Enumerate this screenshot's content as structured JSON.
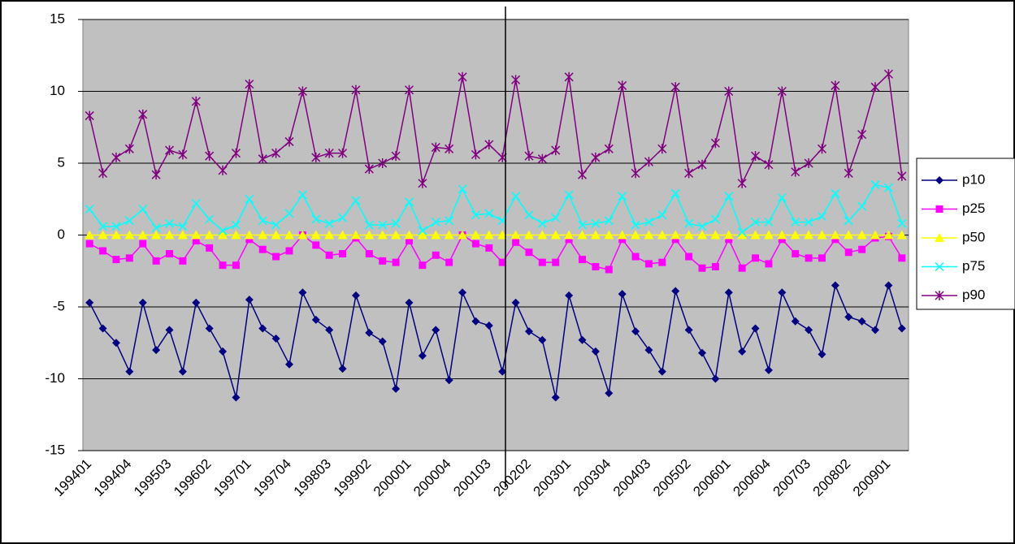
{
  "chart_data": {
    "type": "line",
    "categories": [
      "199401",
      null,
      null,
      "199404",
      null,
      null,
      "199503",
      null,
      null,
      "199602",
      null,
      null,
      "199701",
      null,
      null,
      "199704",
      null,
      null,
      "199803",
      null,
      null,
      "199902",
      null,
      null,
      "200001",
      null,
      null,
      "200004",
      null,
      null,
      "200103",
      null,
      null,
      "200202",
      null,
      null,
      "200301",
      null,
      null,
      "200304",
      null,
      null,
      "200403",
      null,
      null,
      "200502",
      null,
      null,
      "200601",
      null,
      null,
      "200604",
      null,
      null,
      "200703",
      null,
      null,
      "200802",
      null,
      null,
      "200901",
      null
    ],
    "ylim": [
      -15,
      15
    ],
    "yticks": [
      -15,
      -10,
      -5,
      0,
      5,
      10,
      15
    ],
    "grid": true,
    "legend": "right",
    "series": [
      {
        "name": "p10",
        "color": "#000080",
        "marker": "diamond",
        "values": [
          -4.7,
          -6.5,
          -7.5,
          -9.5,
          -4.7,
          -8.0,
          -6.6,
          -9.5,
          -4.7,
          -6.5,
          -8.1,
          -11.3,
          -4.5,
          -6.5,
          -7.2,
          -9.0,
          -4.0,
          -5.9,
          -6.6,
          -9.3,
          -4.2,
          -6.8,
          -7.4,
          -10.7,
          -4.7,
          -8.4,
          -6.6,
          -10.1,
          -4.0,
          -6.0,
          -6.3,
          -9.5,
          -4.7,
          -6.7,
          -7.3,
          -11.3,
          -4.2,
          -7.3,
          -8.1,
          -11.0,
          -4.1,
          -6.7,
          -8.0,
          -9.5,
          -3.9,
          -6.6,
          -8.2,
          -10.0,
          -4.0,
          -8.1,
          -6.5,
          -9.4,
          -4.0,
          -6.0,
          -6.6,
          -8.3,
          -3.5,
          -5.7,
          -6.0,
          -6.6,
          -3.5,
          -6.5
        ]
      },
      {
        "name": "p25",
        "color": "#ff00ff",
        "marker": "square",
        "values": [
          -0.6,
          -1.1,
          -1.7,
          -1.6,
          -0.6,
          -1.8,
          -1.3,
          -1.8,
          -0.4,
          -0.9,
          -2.1,
          -2.1,
          -0.3,
          -1.0,
          -1.5,
          -1.1,
          0.0,
          -0.7,
          -1.4,
          -1.3,
          -0.2,
          -1.3,
          -1.8,
          -1.9,
          -0.4,
          -2.1,
          -1.4,
          -1.9,
          0.0,
          -0.6,
          -0.9,
          -1.9,
          -0.5,
          -1.2,
          -1.9,
          -1.9,
          -0.3,
          -1.7,
          -2.2,
          -2.4,
          -0.3,
          -1.5,
          -2.0,
          -1.9,
          -0.3,
          -1.5,
          -2.3,
          -2.2,
          -0.3,
          -2.3,
          -1.6,
          -2.0,
          -0.3,
          -1.3,
          -1.6,
          -1.6,
          -0.3,
          -1.2,
          -1.0,
          -0.2,
          -0.1,
          -1.6
        ]
      },
      {
        "name": "p50",
        "color": "#ffff00",
        "marker": "triangle",
        "values": [
          0,
          0,
          0,
          0,
          0,
          0,
          0,
          0,
          0,
          0,
          0,
          0,
          0,
          0,
          0,
          0,
          0,
          0,
          0,
          0,
          0,
          0,
          0,
          0,
          0,
          0,
          0,
          0,
          0,
          0,
          0,
          0,
          0,
          0,
          0,
          0,
          0,
          0,
          0,
          0,
          0,
          0,
          0,
          0,
          0,
          0,
          0,
          0,
          0,
          0,
          0,
          0,
          0,
          0,
          0,
          0,
          0,
          0,
          0,
          0,
          0,
          0
        ]
      },
      {
        "name": "p75",
        "color": "#00ffff",
        "marker": "x",
        "values": [
          1.8,
          0.6,
          0.6,
          1.0,
          1.8,
          0.5,
          0.8,
          0.6,
          2.2,
          1.1,
          0.3,
          0.7,
          2.5,
          1.0,
          0.7,
          1.5,
          2.8,
          1.1,
          0.8,
          1.2,
          2.4,
          0.7,
          0.7,
          0.8,
          2.3,
          0.3,
          0.9,
          1.0,
          3.2,
          1.4,
          1.5,
          1.0,
          2.7,
          1.4,
          0.8,
          1.2,
          2.8,
          0.7,
          0.8,
          1.0,
          2.7,
          0.7,
          0.9,
          1.4,
          2.9,
          0.8,
          0.6,
          1.1,
          2.7,
          0.2,
          0.9,
          0.9,
          2.6,
          0.9,
          0.9,
          1.3,
          2.9,
          1.0,
          2.0,
          3.5,
          3.3,
          0.8
        ]
      },
      {
        "name": "p90",
        "color": "#800080",
        "marker": "star",
        "values": [
          8.3,
          4.3,
          5.4,
          6.0,
          8.4,
          4.2,
          5.9,
          5.6,
          9.3,
          5.5,
          4.5,
          5.7,
          10.5,
          5.3,
          5.7,
          6.5,
          10.0,
          5.4,
          5.7,
          5.7,
          10.1,
          4.6,
          5.0,
          5.5,
          10.1,
          3.6,
          6.1,
          6.0,
          11.0,
          5.6,
          6.3,
          5.4,
          10.8,
          5.5,
          5.3,
          5.9,
          11.0,
          4.2,
          5.4,
          6.0,
          10.4,
          4.3,
          5.1,
          6.0,
          10.3,
          4.3,
          4.9,
          6.4,
          10.0,
          3.6,
          5.5,
          4.9,
          10.0,
          4.4,
          5.0,
          6.0,
          10.4,
          4.3,
          7.0,
          10.3,
          11.2,
          4.1
        ]
      }
    ]
  }
}
